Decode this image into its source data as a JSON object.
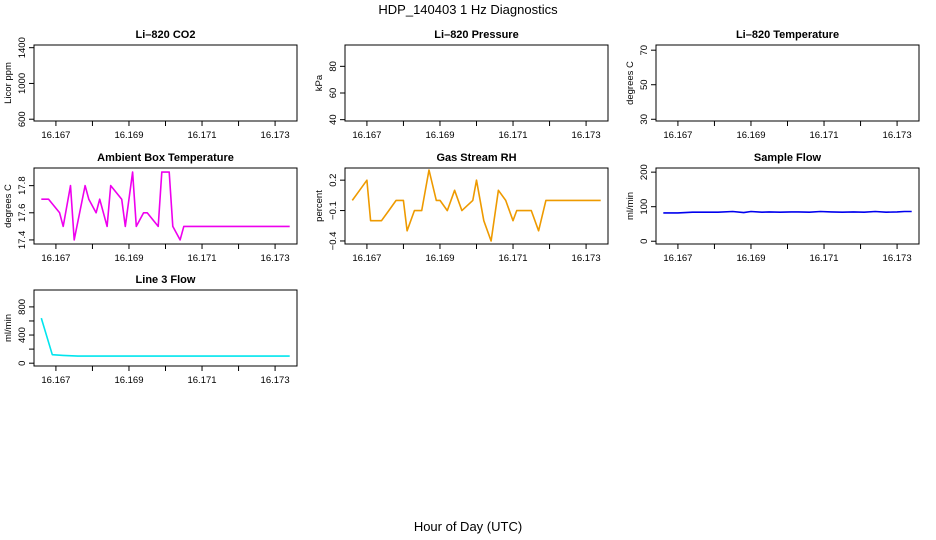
{
  "title": "HDP_140403  1 Hz Diagnostics",
  "xlabel": "Hour of Day (UTC)",
  "chart_data": [
    {
      "type": "line",
      "title": "Li–820 CO2",
      "ylabel": "Licor ppm",
      "xlim": [
        16.1664,
        16.1736
      ],
      "ylim": [
        580,
        1430
      ],
      "xticks": [
        16.167,
        16.169,
        16.171,
        16.173
      ],
      "xtick_labels": [
        "16.167",
        "16.169",
        "16.171",
        "16.173"
      ],
      "yticks": [
        600,
        1000,
        1400
      ],
      "ytick_labels": [
        "600",
        "1000",
        "1400"
      ],
      "color": "#000000",
      "series": []
    },
    {
      "type": "line",
      "title": "Li–820 Pressure",
      "ylabel": "kPa",
      "xlim": [
        16.1664,
        16.1736
      ],
      "ylim": [
        39,
        96
      ],
      "xticks": [
        16.167,
        16.169,
        16.171,
        16.173
      ],
      "xtick_labels": [
        "16.167",
        "16.169",
        "16.171",
        "16.173"
      ],
      "yticks": [
        40,
        60,
        80
      ],
      "ytick_labels": [
        "40",
        "60",
        "80"
      ],
      "color": "#000000",
      "series": []
    },
    {
      "type": "line",
      "title": "Li–820 Temperature",
      "ylabel": "degrees C",
      "xlim": [
        16.1664,
        16.1736
      ],
      "ylim": [
        29,
        73
      ],
      "xticks": [
        16.167,
        16.169,
        16.171,
        16.173
      ],
      "xtick_labels": [
        "16.167",
        "16.169",
        "16.171",
        "16.173"
      ],
      "yticks": [
        30,
        50,
        70
      ],
      "ytick_labels": [
        "30",
        "50",
        "70"
      ],
      "color": "#000000",
      "series": []
    },
    {
      "type": "line",
      "title": "Ambient Box Temperature",
      "ylabel": "degrees C",
      "xlim": [
        16.1664,
        16.1736
      ],
      "ylim": [
        17.37,
        17.93
      ],
      "xticks": [
        16.167,
        16.169,
        16.171,
        16.173
      ],
      "xtick_labels": [
        "16.167",
        "16.169",
        "16.171",
        "16.173"
      ],
      "yticks": [
        17.4,
        17.6,
        17.8
      ],
      "ytick_labels": [
        "17.4",
        "17.6",
        "17.8"
      ],
      "color": "#ee00ee",
      "series": [
        {
          "x": [
            16.1666,
            16.1668,
            16.1671,
            16.1672,
            16.1674,
            16.1675,
            16.1678,
            16.1679,
            16.1681,
            16.1682,
            16.1684,
            16.1685,
            16.1688,
            16.1689,
            16.1691,
            16.1692,
            16.1694,
            16.1695,
            16.1698,
            16.1699,
            16.1701,
            16.1702,
            16.1704,
            16.1705,
            16.1708,
            16.1709,
            16.1711,
            16.1712,
            16.1714,
            16.1715,
            16.1718,
            16.1719,
            16.1721,
            16.1722,
            16.1724,
            16.1725,
            16.1728,
            16.1729,
            16.1731,
            16.1732,
            16.1734
          ],
          "y": [
            17.7,
            17.7,
            17.6,
            17.5,
            17.8,
            17.4,
            17.8,
            17.7,
            17.6,
            17.7,
            17.5,
            17.8,
            17.7,
            17.5,
            17.9,
            17.5,
            17.6,
            17.6,
            17.5,
            17.9,
            17.9,
            17.5,
            17.4,
            17.5,
            17.5,
            17.5,
            17.5,
            17.5,
            17.5,
            17.5,
            17.5,
            17.5,
            17.5,
            17.5,
            17.5,
            17.5,
            17.5,
            17.5,
            17.5,
            17.5,
            17.5
          ]
        }
      ]
    },
    {
      "type": "line",
      "title": "Gas Stream RH",
      "ylabel": "percent",
      "xlim": [
        16.1664,
        16.1736
      ],
      "ylim": [
        -0.43,
        0.32
      ],
      "xticks": [
        16.167,
        16.169,
        16.171,
        16.173
      ],
      "xtick_labels": [
        "16.167",
        "16.169",
        "16.171",
        "16.173"
      ],
      "yticks": [
        -0.4,
        -0.1,
        0.2
      ],
      "ytick_labels": [
        "−0.4",
        "−0.1",
        "0.2"
      ],
      "color": "#ee9a00",
      "series": [
        {
          "x": [
            16.1666,
            16.1668,
            16.167,
            16.1671,
            16.1674,
            16.1676,
            16.1678,
            16.168,
            16.1681,
            16.1683,
            16.1685,
            16.1687,
            16.1689,
            16.169,
            16.1692,
            16.1694,
            16.1696,
            16.1699,
            16.17,
            16.1702,
            16.1704,
            16.1706,
            16.1708,
            16.171,
            16.1711,
            16.1713,
            16.1715,
            16.1717,
            16.1719,
            16.1721,
            16.1723,
            16.1725,
            16.1727,
            16.1729,
            16.1731,
            16.1733,
            16.1734
          ],
          "y": [
            0.0,
            0.1,
            0.2,
            -0.2,
            -0.2,
            -0.1,
            0.0,
            0.0,
            -0.3,
            -0.1,
            -0.1,
            0.3,
            0.0,
            0.0,
            -0.1,
            0.1,
            -0.1,
            0.0,
            0.2,
            -0.2,
            -0.4,
            0.1,
            0.0,
            -0.2,
            -0.1,
            -0.1,
            -0.1,
            -0.3,
            0.0,
            0.0,
            0.0,
            0.0,
            0.0,
            0.0,
            0.0,
            0.0,
            0.0
          ]
        }
      ]
    },
    {
      "type": "line",
      "title": "Sample Flow",
      "ylabel": "ml/min",
      "xlim": [
        16.1664,
        16.1736
      ],
      "ylim": [
        -8,
        212
      ],
      "xticks": [
        16.167,
        16.169,
        16.171,
        16.173
      ],
      "xtick_labels": [
        "16.167",
        "16.169",
        "16.171",
        "16.173"
      ],
      "yticks": [
        0,
        100,
        200
      ],
      "ytick_labels": [
        "0",
        "100",
        "200"
      ],
      "color": "#0000ee",
      "series": [
        {
          "x": [
            16.1666,
            16.167,
            16.1674,
            16.1678,
            16.1681,
            16.1685,
            16.1688,
            16.169,
            16.1693,
            16.1695,
            16.1698,
            16.1701,
            16.1703,
            16.1706,
            16.1709,
            16.1712,
            16.1715,
            16.1718,
            16.1721,
            16.1724,
            16.1727,
            16.173,
            16.1732,
            16.1734
          ],
          "y": [
            82,
            82,
            84,
            84,
            84,
            86,
            83,
            86,
            84,
            85,
            84,
            85,
            85,
            84,
            86,
            85,
            84,
            85,
            84,
            86,
            84,
            85,
            86,
            86
          ]
        }
      ]
    },
    {
      "type": "line",
      "title": "Line 3 Flow",
      "ylabel": "ml/min",
      "xlim": [
        16.1664,
        16.1736
      ],
      "ylim": [
        -40,
        1040
      ],
      "xticks": [
        16.167,
        16.169,
        16.171,
        16.173
      ],
      "xtick_labels": [
        "16.167",
        "16.169",
        "16.171",
        "16.173"
      ],
      "yticks": [
        0,
        400,
        800
      ],
      "ytick_labels": [
        "0",
        "400",
        "800"
      ],
      "yticks_minor": [
        200,
        600
      ],
      "color": "#00e5ee",
      "series": [
        {
          "x": [
            16.1666,
            16.1669,
            16.1672,
            16.1676,
            16.168,
            16.1684,
            16.1688,
            16.1692,
            16.1696,
            16.17,
            16.1704,
            16.1708,
            16.1712,
            16.1716,
            16.172,
            16.1724,
            16.1728,
            16.1732,
            16.1734
          ],
          "y": [
            640,
            120,
            110,
            100,
            100,
            100,
            100,
            100,
            100,
            100,
            100,
            100,
            100,
            100,
            100,
            100,
            100,
            100,
            100
          ]
        }
      ]
    }
  ]
}
